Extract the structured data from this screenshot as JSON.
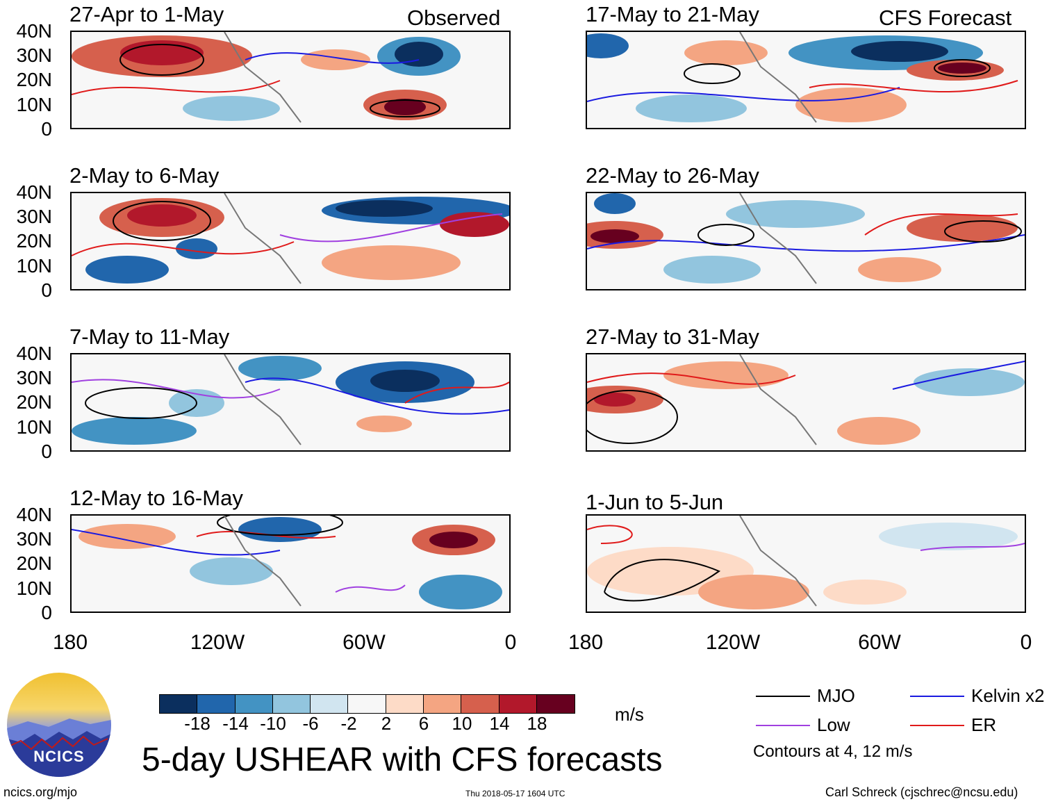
{
  "column_labels": {
    "left": "Observed",
    "right": "CFS Forecast"
  },
  "panels": [
    {
      "title": "27-Apr to 1-May"
    },
    {
      "title": "17-May to 21-May"
    },
    {
      "title": "2-May to 6-May"
    },
    {
      "title": "22-May to 26-May"
    },
    {
      "title": "7-May to 11-May"
    },
    {
      "title": "27-May to 31-May"
    },
    {
      "title": "12-May to 16-May"
    },
    {
      "title": "1-Jun to 5-Jun"
    }
  ],
  "y_ticks": [
    "40N",
    "30N",
    "20N",
    "10N",
    "0"
  ],
  "x_ticks": [
    "180",
    "120W",
    "60W",
    "0"
  ],
  "colorbar": {
    "tick_labels": [
      "-18",
      "-14",
      "-10",
      "-6",
      "-2",
      "2",
      "6",
      "10",
      "14",
      "18"
    ],
    "colors": [
      "#0b2f5e",
      "#2166ac",
      "#4393c3",
      "#92c5de",
      "#d1e5f0",
      "#f7f7f7",
      "#fddbc7",
      "#f4a582",
      "#d6604d",
      "#b2182b",
      "#67001f"
    ],
    "units": "m/s"
  },
  "legend": {
    "items": [
      {
        "label": "MJO",
        "color": "#000000"
      },
      {
        "label": "Kelvin x2",
        "color": "#1a1ae0"
      },
      {
        "label": "Low",
        "color": "#a040e0"
      },
      {
        "label": "ER",
        "color": "#e01a1a"
      }
    ],
    "note": "Contours at 4, 12 m/s"
  },
  "main_title": "5-day USHEAR with CFS forecasts",
  "logo_text": "NCICS",
  "footer": {
    "website": "ncics.org/mjo",
    "timestamp": "Thu 2018-05-17 1604 UTC",
    "author": "Carl Schreck (cjschrec@ncsu.edu)"
  }
}
